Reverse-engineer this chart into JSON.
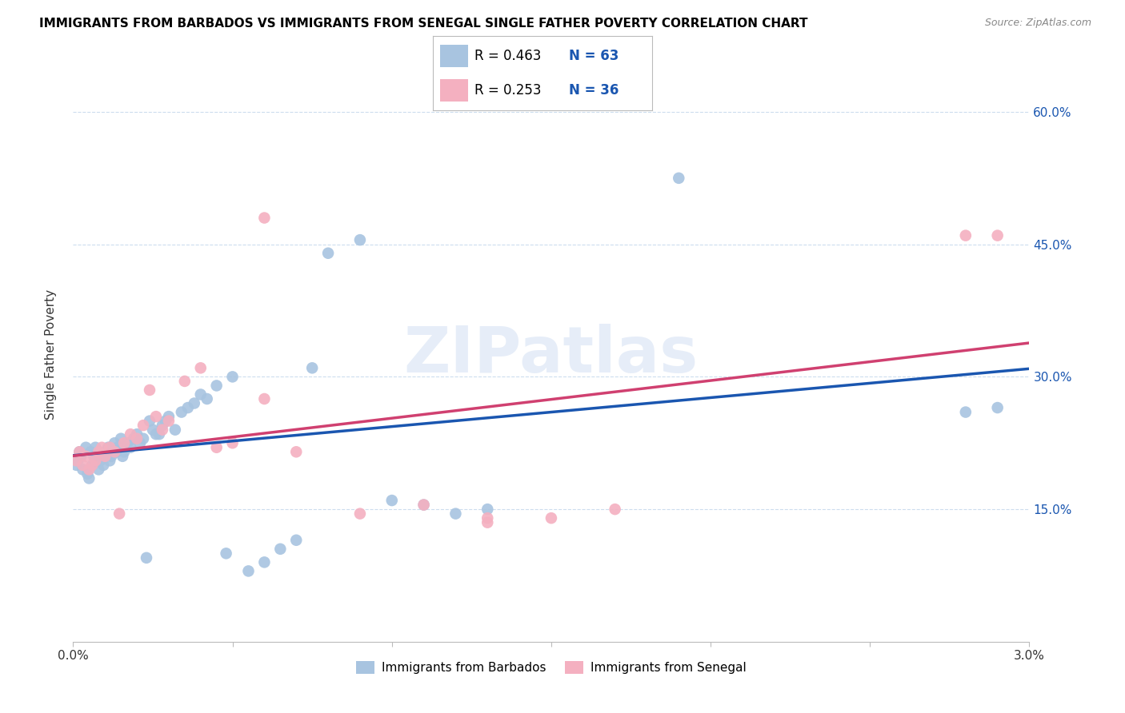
{
  "title": "IMMIGRANTS FROM BARBADOS VS IMMIGRANTS FROM SENEGAL SINGLE FATHER POVERTY CORRELATION CHART",
  "source": "Source: ZipAtlas.com",
  "ylabel": "Single Father Poverty",
  "color_barbados": "#a8c4e0",
  "color_senegal": "#f4b0c0",
  "line_color_barbados": "#1a56b0",
  "line_color_senegal": "#d04070",
  "legend_r1": "R = 0.463",
  "legend_n1": "N = 63",
  "legend_r2": "R = 0.253",
  "legend_n2": "N = 36",
  "watermark_text": "ZIPatlas",
  "xlim": [
    0.0,
    0.03
  ],
  "ylim": [
    0.0,
    0.65
  ],
  "yticks": [
    0.15,
    0.3,
    0.45,
    0.6
  ],
  "ytick_labels": [
    "15.0%",
    "30.0%",
    "45.0%",
    "60.0%"
  ],
  "xtick_positions": [
    0.0,
    0.005,
    0.01,
    0.015,
    0.02,
    0.025,
    0.03
  ],
  "label_barbados": "Immigrants from Barbados",
  "label_senegal": "Immigrants from Senegal",
  "barbados_x": [
    0.0001,
    0.00015,
    0.0002,
    0.00025,
    0.0003,
    0.0004,
    0.00045,
    0.0005,
    0.00055,
    0.0006,
    0.00065,
    0.0007,
    0.0008,
    0.00085,
    0.0009,
    0.00095,
    0.001,
    0.0011,
    0.00115,
    0.0012,
    0.0013,
    0.00135,
    0.0014,
    0.0015,
    0.00155,
    0.0016,
    0.0017,
    0.0018,
    0.0019,
    0.002,
    0.0021,
    0.0022,
    0.0023,
    0.0024,
    0.0025,
    0.0026,
    0.0027,
    0.0028,
    0.0029,
    0.003,
    0.0032,
    0.0034,
    0.0036,
    0.0038,
    0.004,
    0.0042,
    0.0045,
    0.0048,
    0.005,
    0.0055,
    0.006,
    0.0065,
    0.007,
    0.0075,
    0.008,
    0.009,
    0.01,
    0.011,
    0.012,
    0.013,
    0.019,
    0.028,
    0.029
  ],
  "barbados_y": [
    0.2,
    0.205,
    0.215,
    0.21,
    0.195,
    0.22,
    0.19,
    0.185,
    0.215,
    0.2,
    0.21,
    0.22,
    0.195,
    0.205,
    0.21,
    0.2,
    0.215,
    0.22,
    0.205,
    0.21,
    0.225,
    0.215,
    0.22,
    0.23,
    0.21,
    0.215,
    0.225,
    0.22,
    0.23,
    0.235,
    0.225,
    0.23,
    0.095,
    0.25,
    0.24,
    0.235,
    0.235,
    0.245,
    0.25,
    0.255,
    0.24,
    0.26,
    0.265,
    0.27,
    0.28,
    0.275,
    0.29,
    0.1,
    0.3,
    0.08,
    0.09,
    0.105,
    0.115,
    0.31,
    0.44,
    0.455,
    0.16,
    0.155,
    0.145,
    0.15,
    0.525,
    0.26,
    0.265
  ],
  "senegal_x": [
    0.0001,
    0.0002,
    0.0003,
    0.0004,
    0.0005,
    0.0006,
    0.0007,
    0.0008,
    0.0009,
    0.001,
    0.00115,
    0.0013,
    0.00145,
    0.0016,
    0.0018,
    0.002,
    0.0022,
    0.0024,
    0.0026,
    0.0028,
    0.003,
    0.0035,
    0.004,
    0.0045,
    0.005,
    0.006,
    0.007,
    0.009,
    0.011,
    0.013,
    0.015,
    0.017,
    0.028,
    0.006,
    0.013,
    0.029
  ],
  "senegal_y": [
    0.205,
    0.215,
    0.2,
    0.21,
    0.195,
    0.2,
    0.205,
    0.215,
    0.22,
    0.21,
    0.22,
    0.215,
    0.145,
    0.225,
    0.235,
    0.23,
    0.245,
    0.285,
    0.255,
    0.24,
    0.25,
    0.295,
    0.31,
    0.22,
    0.225,
    0.275,
    0.215,
    0.145,
    0.155,
    0.14,
    0.14,
    0.15,
    0.46,
    0.48,
    0.135,
    0.46
  ]
}
